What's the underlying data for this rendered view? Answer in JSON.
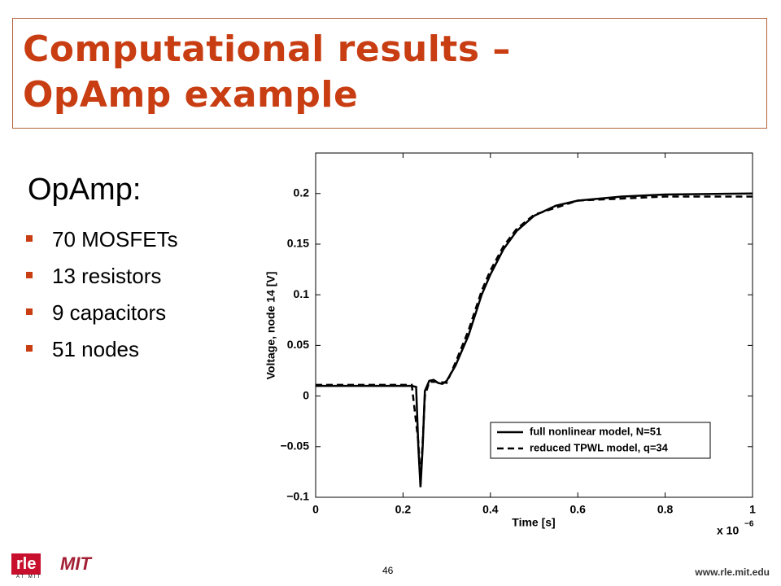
{
  "slide": {
    "title_lines": [
      "Computational results –",
      "OpAmp example"
    ],
    "heading": "OpAmp:",
    "bullets": [
      "70 MOSFETs",
      "13 resistors",
      "9 capacitors",
      "51 nodes"
    ],
    "page_number": "46",
    "footer_url": "www.rle.mit.edu",
    "logo_rle": "rle",
    "logo_rle_sub": "AT MIT",
    "logo_mit": "MIT"
  },
  "chart_data": {
    "type": "line",
    "xlabel": "Time [s]",
    "ylabel": "Voltage, node 14 [V]",
    "x_multiplier": "x 10",
    "x_multiplier_exponent": "−6",
    "xlim": [
      0,
      1
    ],
    "xticks": [
      0,
      0.2,
      0.4,
      0.6,
      0.8,
      1
    ],
    "ylim": [
      -0.1,
      0.24
    ],
    "yticks": [
      {
        "value": -0.1,
        "label": "−0.1"
      },
      {
        "value": -0.05,
        "label": "−0.05"
      },
      0,
      0.05,
      0.1,
      0.15,
      0.2
    ],
    "legend": "lower right",
    "series": [
      {
        "name": "full nonlinear model, N=51",
        "color": "#000000",
        "dash": "solid",
        "x": [
          0,
          0.22,
          0.23,
          0.235,
          0.24,
          0.245,
          0.25,
          0.26,
          0.27,
          0.28,
          0.29,
          0.3,
          0.32,
          0.35,
          0.38,
          0.4,
          0.43,
          0.46,
          0.5,
          0.55,
          0.6,
          0.7,
          0.8,
          1
        ],
        "values": [
          0.01,
          0.01,
          0.009,
          -0.05,
          -0.09,
          -0.05,
          0.005,
          0.015,
          0.016,
          0.013,
          0.012,
          0.015,
          0.03,
          0.06,
          0.1,
          0.12,
          0.145,
          0.163,
          0.178,
          0.188,
          0.193,
          0.197,
          0.199,
          0.2
        ]
      },
      {
        "name": "reduced TPWL model, q=34",
        "color": "#000000",
        "dash": "dashed",
        "x": [
          0,
          0.22,
          0.235,
          0.24,
          0.245,
          0.25,
          0.26,
          0.28,
          0.3,
          0.32,
          0.35,
          0.38,
          0.4,
          0.43,
          0.46,
          0.5,
          0.6,
          0.8,
          1
        ],
        "values": [
          0.011,
          0.011,
          -0.045,
          -0.085,
          -0.045,
          0.0,
          0.014,
          0.014,
          0.013,
          0.033,
          0.065,
          0.104,
          0.124,
          0.148,
          0.165,
          0.179,
          0.193,
          0.197,
          0.197
        ]
      }
    ]
  }
}
